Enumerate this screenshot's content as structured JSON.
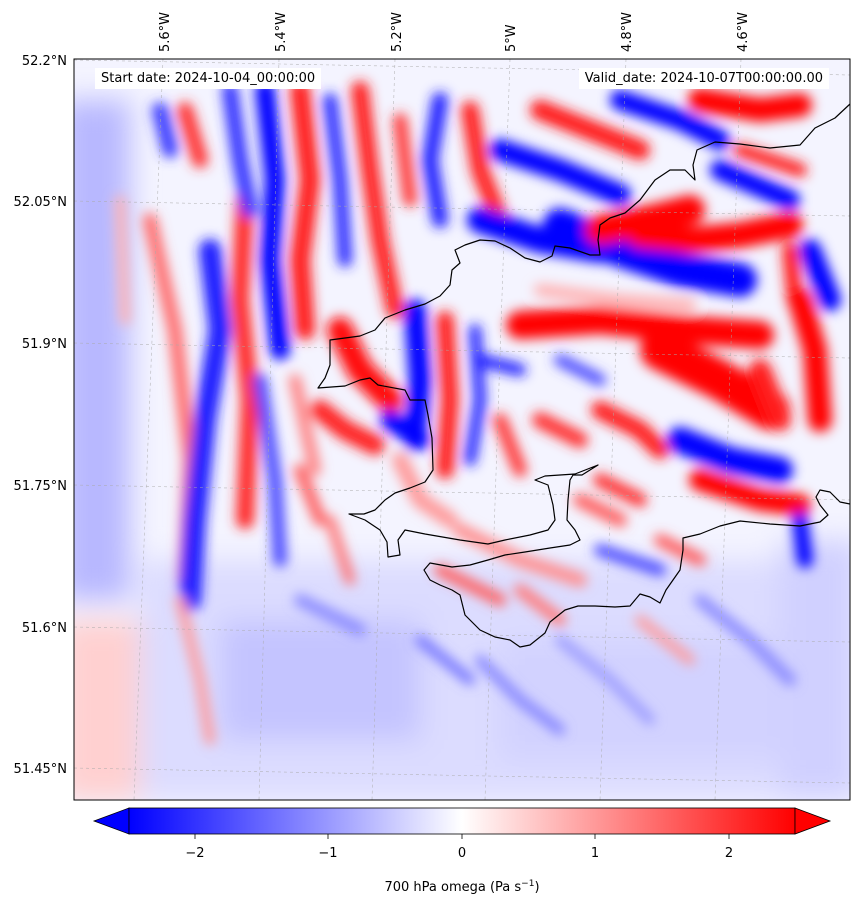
{
  "header": {
    "start_date": "Start date: 2024-10-04_00:00:00",
    "valid_date": "Valid_date: 2024-10-07T00:00:00.00"
  },
  "map": {
    "lon_labels": [
      "5.6°W",
      "5.4°W",
      "5.2°W",
      "5°W",
      "4.8°W",
      "4.6°W"
    ],
    "lat_labels": [
      "52.2°N",
      "52.05°N",
      "51.9°N",
      "51.75°N",
      "51.6°N",
      "51.45°N"
    ],
    "coastline_color": "#000000",
    "grid": true
  },
  "colorbar": {
    "tick_labels": [
      "−2",
      "−1",
      "0",
      "1",
      "2"
    ],
    "label_main": "700 hPa omega (Pa s",
    "label_exp": "−1",
    "label_end": ")",
    "min_color": "#0000ff",
    "mid_color": "#ffffff",
    "max_color": "#ff0000"
  }
}
